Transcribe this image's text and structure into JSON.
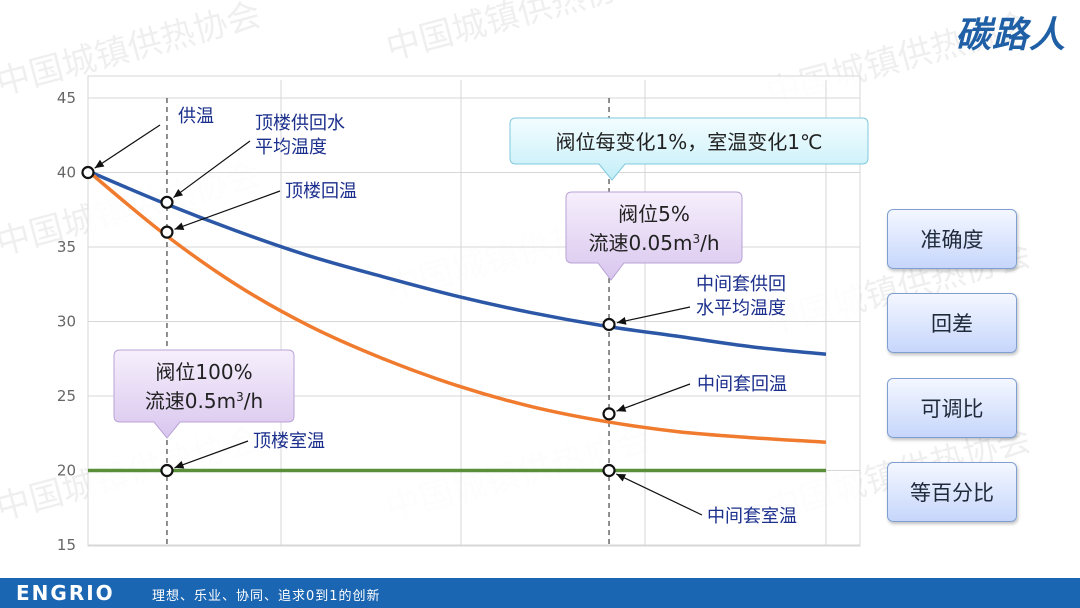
{
  "brand": {
    "name": "碳路人"
  },
  "chart_data": {
    "type": "line",
    "ylim": [
      15,
      45
    ],
    "yticks": [
      15,
      20,
      25,
      30,
      35,
      40,
      45
    ],
    "x_range": [
      0,
      1
    ],
    "series": [
      {
        "key": "supply",
        "color": "#2b57a6",
        "x": [
          0,
          0.1,
          0.2,
          0.3,
          0.4,
          0.5,
          0.6,
          0.7,
          0.8,
          0.9,
          1.0
        ],
        "y": [
          40.1,
          38.0,
          36.1,
          34.4,
          33.0,
          31.7,
          30.6,
          29.7,
          29.0,
          28.3,
          27.8
        ]
      },
      {
        "key": "return",
        "color": "#f07b2e",
        "x": [
          0,
          0.1,
          0.2,
          0.3,
          0.4,
          0.5,
          0.6,
          0.7,
          0.8,
          0.9,
          1.0
        ],
        "y": [
          40.1,
          36.0,
          32.5,
          29.7,
          27.5,
          25.7,
          24.3,
          23.3,
          22.6,
          22.2,
          21.9
        ]
      },
      {
        "key": "room",
        "color": "#5a8f3a",
        "x": [
          0,
          1.0
        ],
        "y": [
          20,
          20
        ]
      }
    ],
    "guides": [
      {
        "x": 0.107
      },
      {
        "x": 0.706
      }
    ],
    "markers": [
      {
        "label": "供温",
        "x": 0.0,
        "y": 40.0
      },
      {
        "label": "顶楼供回水平均温度",
        "x": 0.107,
        "y": 38.0
      },
      {
        "label": "顶楼回温",
        "x": 0.107,
        "y": 36.0
      },
      {
        "label": "顶楼室温",
        "x": 0.107,
        "y": 20.0
      },
      {
        "label": "中间套供回水平均温度",
        "x": 0.706,
        "y": 29.8
      },
      {
        "label": "中间套回温",
        "x": 0.706,
        "y": 23.8
      },
      {
        "label": "中间套室温",
        "x": 0.706,
        "y": 20.0
      }
    ],
    "annotations": {
      "supply_temp": "供温",
      "top_avg_line1": "顶楼供回水",
      "top_avg_line2": "平均温度",
      "top_return": "顶楼回温",
      "top_room": "顶楼室温",
      "mid_avg_line1": "中间套供回",
      "mid_avg_line2": "水平均温度",
      "mid_return": "中间套回温",
      "mid_room": "中间套室温"
    },
    "callouts": {
      "rule": "阀位每变化1%，室温变化1℃",
      "valve5_line1": "阀位5%",
      "valve5_line2_pre": "流速0.05m",
      "valve5_line2_sup": "3",
      "valve5_line2_post": "/h",
      "valve100_line1": "阀位100%",
      "valve100_line2_pre": "流速0.5m",
      "valve100_line2_sup": "3",
      "valve100_line2_post": "/h"
    }
  },
  "side_buttons": [
    "准确度",
    "回差",
    "可调比",
    "等百分比"
  ],
  "footer": {
    "logo": "ENGRIO",
    "slogan": "理想、乐业、协同、追求0到1的创新"
  },
  "watermark": "中国城镇供热协会"
}
